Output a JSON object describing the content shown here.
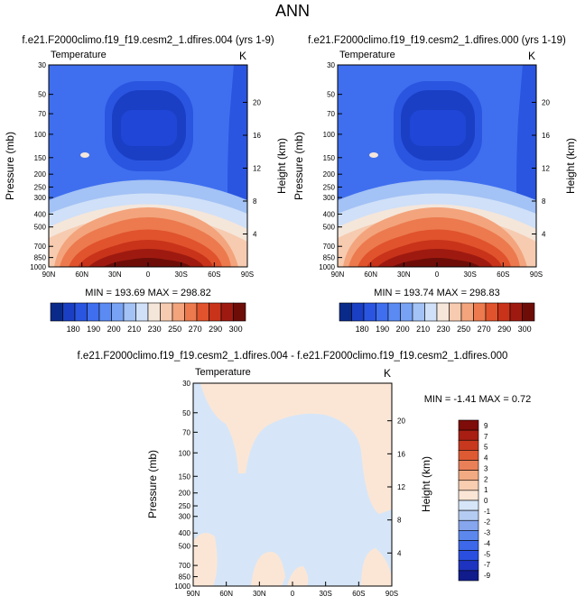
{
  "page_title": "ANN",
  "colors": {
    "abs_levels": [
      "#0a2a8a",
      "#1a3fc4",
      "#2a55e0",
      "#3f6fef",
      "#5a8af2",
      "#78a3f4",
      "#a3c2f5",
      "#cfe0f8",
      "#f5e6da",
      "#f6cbb0",
      "#f3a47c",
      "#ec7a4e",
      "#e0532c",
      "#c8331a",
      "#9e1a10",
      "#6e0d08"
    ],
    "diff_levels": [
      "#101c8c",
      "#1e34c0",
      "#2a4fe0",
      "#3d68ea",
      "#5c88ee",
      "#86a6ee",
      "#b5ccf2",
      "#d6e6f8",
      "#fbe6d6",
      "#f8cdb0",
      "#f2aa82",
      "#ea8058",
      "#de5a33",
      "#c8381e",
      "#a81e12",
      "#7e0c08"
    ]
  },
  "chart_data": [
    {
      "type": "heatmap",
      "title": "f.e21.F2000climo.f19_f19.cesm2_1.dfires.004 (yrs 1-9)",
      "left_label": "Temperature",
      "right_label": "K",
      "ylabel": "Pressure (mb)",
      "ylabel_right": "Height (km)",
      "x_ticks": [
        "90N",
        "60N",
        "30N",
        "0",
        "30S",
        "60S",
        "90S"
      ],
      "y_ticks": [
        "30",
        "50",
        "70",
        "100",
        "150",
        "200",
        "250",
        "300",
        "400",
        "500",
        "700",
        "850",
        "1000"
      ],
      "y_ticks_right": [
        "20",
        "16",
        "12",
        "8",
        "4"
      ],
      "ylim": [
        30,
        1000
      ],
      "stats": "MIN = 193.69  MAX = 298.82",
      "min": 193.69,
      "max": 298.82,
      "colorbar_labels": [
        "180",
        "190",
        "200",
        "210",
        "230",
        "250",
        "270",
        "290",
        "300"
      ]
    },
    {
      "type": "heatmap",
      "title": "f.e21.F2000climo.f19_f19.cesm2_1.dfires.000 (yrs 1-19)",
      "left_label": "Temperature",
      "right_label": "K",
      "ylabel": "Pressure (mb)",
      "ylabel_right": "Height (km)",
      "x_ticks": [
        "90N",
        "60N",
        "30N",
        "0",
        "30S",
        "60S",
        "90S"
      ],
      "y_ticks": [
        "30",
        "50",
        "70",
        "100",
        "150",
        "200",
        "250",
        "300",
        "400",
        "500",
        "700",
        "850",
        "1000"
      ],
      "y_ticks_right": [
        "20",
        "16",
        "12",
        "8",
        "4"
      ],
      "ylim": [
        30,
        1000
      ],
      "stats": "MIN = 193.74  MAX = 298.83",
      "min": 193.74,
      "max": 298.83,
      "colorbar_labels": [
        "180",
        "190",
        "200",
        "210",
        "230",
        "250",
        "270",
        "290",
        "300"
      ]
    },
    {
      "type": "heatmap",
      "title": "f.e21.F2000climo.f19_f19.cesm2_1.dfires.004 - f.e21.F2000climo.f19_f19.cesm2_1.dfires.000",
      "left_label": "Temperature",
      "right_label": "K",
      "ylabel": "Pressure (mb)",
      "ylabel_right": "Height (km)",
      "x_ticks": [
        "90N",
        "60N",
        "30N",
        "0",
        "30S",
        "60S",
        "90S"
      ],
      "y_ticks": [
        "30",
        "50",
        "70",
        "100",
        "150",
        "200",
        "250",
        "300",
        "400",
        "500",
        "700",
        "850",
        "1000"
      ],
      "y_ticks_right": [
        "20",
        "16",
        "12",
        "8",
        "4"
      ],
      "ylim": [
        30,
        1000
      ],
      "stats": "MIN = -1.41  MAX =  0.72",
      "min": -1.41,
      "max": 0.72,
      "colorbar_labels": [
        "9",
        "7",
        "5",
        "4",
        "3",
        "2",
        "1",
        "0",
        "-1",
        "-2",
        "-3",
        "-4",
        "-5",
        "-7",
        "-9"
      ]
    }
  ]
}
